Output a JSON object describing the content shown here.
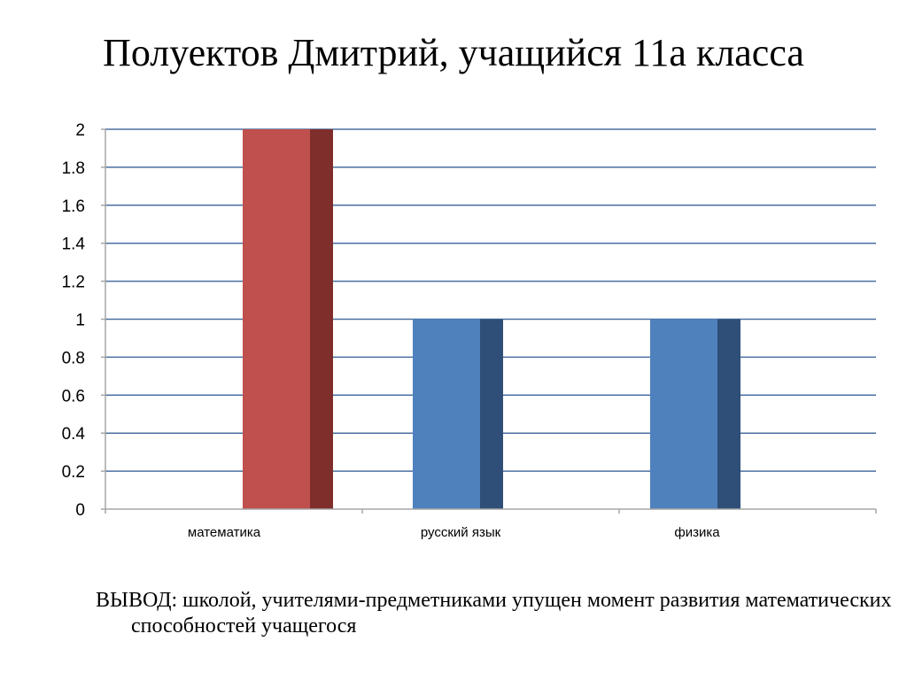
{
  "title": "Полуектов Дмитрий, учащийся 11а класса",
  "conclusion": "ВЫВОД: школой, учителями-предметниками упущен момент развития математических способностей учащегося",
  "colors": {
    "highlight_bar": "#C0504D",
    "highlight_bar_shade": "#7F2E2C",
    "normal_bar": "#4F81BD",
    "normal_bar_shade": "#2F4F78",
    "grid": "#4A6FA0",
    "axis": "#A6A6A6"
  },
  "chart_data": {
    "type": "bar",
    "categories": [
      "математика",
      "русский язык",
      "физика"
    ],
    "values": [
      2,
      1,
      1
    ],
    "highlighted": [
      true,
      false,
      false
    ],
    "ylim": [
      0,
      2
    ],
    "yticks": [
      "0",
      "0.2",
      "0.4",
      "0.6",
      "0.8",
      "1",
      "1.2",
      "1.4",
      "1.6",
      "1.8",
      "2"
    ],
    "grid": true,
    "legend": "none",
    "xlabel": "",
    "ylabel": ""
  }
}
